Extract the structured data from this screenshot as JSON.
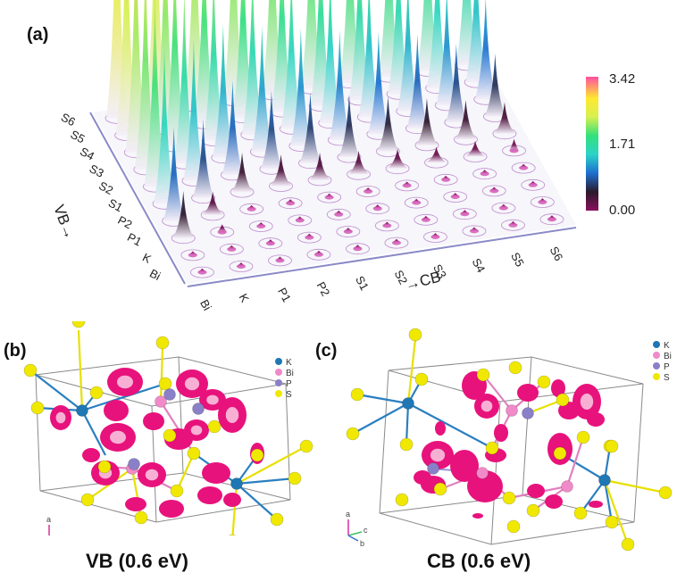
{
  "panels": {
    "a": {
      "label": "(a)",
      "chart_data": {
        "type": "bar3d",
        "x_axis_label": "→CB",
        "y_axis_label": "VB→",
        "x_categories": [
          "Bi",
          "K",
          "P1",
          "P2",
          "S1",
          "S2",
          "S3",
          "S4",
          "S5",
          "S6"
        ],
        "y_categories": [
          "Bi",
          "K",
          "P1",
          "P2",
          "S1",
          "S2",
          "S3",
          "S4",
          "S5",
          "S6"
        ],
        "colorbar": {
          "ticks": [
            "3.42",
            "1.71",
            "0.00"
          ],
          "min": 0.0,
          "max": 3.42,
          "colors": [
            "#7a0f5a",
            "#222222",
            "#1e6fd0",
            "#2bd4c8",
            "#33e07a",
            "#d8f050",
            "#ffe830",
            "#ff5fa0"
          ]
        },
        "values": [
          [
            0.05,
            0.05,
            0.05,
            0.05,
            0.05,
            0.05,
            0.05,
            0.05,
            0.05,
            0.05
          ],
          [
            0.05,
            0.05,
            0.05,
            0.05,
            0.05,
            0.05,
            0.05,
            0.05,
            0.05,
            0.05
          ],
          [
            0.6,
            0.1,
            0.05,
            0.05,
            0.05,
            0.05,
            0.05,
            0.05,
            0.05,
            0.05
          ],
          [
            1.2,
            0.3,
            0.05,
            0.05,
            0.05,
            0.05,
            0.05,
            0.05,
            0.05,
            0.05
          ],
          [
            2.0,
            1.0,
            0.5,
            0.4,
            0.35,
            0.3,
            0.25,
            0.2,
            0.2,
            0.15
          ],
          [
            2.6,
            1.8,
            1.2,
            1.0,
            0.9,
            0.8,
            0.7,
            0.6,
            0.5,
            0.4
          ],
          [
            2.8,
            2.2,
            1.7,
            1.6,
            1.5,
            1.4,
            1.3,
            1.2,
            1.0,
            0.8
          ],
          [
            3.0,
            2.6,
            2.2,
            2.1,
            2.0,
            1.9,
            1.8,
            1.7,
            1.5,
            1.3
          ],
          [
            3.2,
            2.9,
            2.6,
            2.5,
            2.4,
            2.3,
            2.2,
            2.1,
            2.0,
            1.8
          ],
          [
            3.42,
            3.2,
            3.0,
            2.9,
            2.8,
            2.7,
            2.6,
            2.5,
            2.4,
            2.2
          ]
        ]
      }
    },
    "b": {
      "label": "(b)",
      "caption": "VB (0.6 eV)",
      "legend": [
        {
          "label": "K",
          "color": "#1f77b4"
        },
        {
          "label": "Bi",
          "color": "#f08ac8"
        },
        {
          "label": "P",
          "color": "#8a80c8"
        },
        {
          "label": "S",
          "color": "#f0e800"
        }
      ],
      "axes": {
        "a": "a",
        "b": "b",
        "c": "c"
      }
    },
    "c": {
      "label": "(c)",
      "caption": "CB (0.6 eV)",
      "legend": [
        {
          "label": "K",
          "color": "#1f77b4"
        },
        {
          "label": "Bi",
          "color": "#f08ac8"
        },
        {
          "label": "P",
          "color": "#8a80c8"
        },
        {
          "label": "S",
          "color": "#f0e800"
        }
      ],
      "axes": {
        "a": "a",
        "b": "b",
        "c": "c"
      }
    },
    "colors": {
      "isosurface": "#e8127c",
      "k": "#1f77b4",
      "bi": "#f08ac8",
      "p": "#8a80c8",
      "s": "#f0e800",
      "bond_k": "#2a7fc0",
      "bond_s": "#e8e000"
    }
  }
}
